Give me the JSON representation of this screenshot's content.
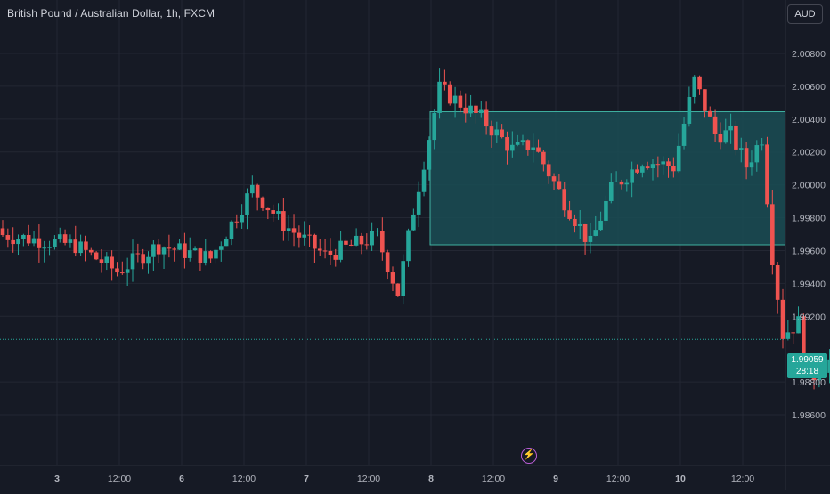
{
  "header": {
    "title": "British Pound / Australian Dollar, 1h, FXCM"
  },
  "currency_button": {
    "label": "AUD"
  },
  "last_price": {
    "price": "1.99059",
    "countdown": "28:18"
  },
  "event_icon": {
    "name": "lightning-icon",
    "glyph": "⚡"
  },
  "colors": {
    "background": "#161a25",
    "up": "#26a69a",
    "down": "#ef5350",
    "zone_fill": "#1a4d55",
    "zone_border": "#3fb0a0"
  },
  "chart_data": {
    "type": "candlestick",
    "title": "British Pound / Australian Dollar, 1h, FXCM",
    "ylim": [
      1.9848,
      2.0104
    ],
    "y_ticks": [
      "2.00800",
      "2.00600",
      "2.00400",
      "2.00200",
      "2.00000",
      "1.99800",
      "1.99600",
      "1.99400",
      "1.99200",
      "1.98800",
      "1.98600"
    ],
    "x_ticks": [
      "3",
      "12:00",
      "6",
      "12:00",
      "7",
      "12:00",
      "8",
      "12:00",
      "9",
      "12:00",
      "10",
      "12:00"
    ],
    "grid": true,
    "last_price": 1.99059,
    "zone": {
      "top": 2.00445,
      "bottom": 1.99635,
      "x_start_label": "8"
    },
    "segments": [
      [
        1.997,
        1.99632,
        15
      ],
      [
        1.99632,
        1.99472,
        8
      ],
      [
        1.99472,
        1.99632,
        8
      ],
      [
        1.99632,
        1.99552,
        10
      ],
      [
        1.99552,
        1.99975,
        8
      ],
      [
        1.99975,
        1.9976,
        6
      ],
      [
        1.9976,
        1.9957,
        8
      ],
      [
        1.9957,
        1.99685,
        10
      ],
      [
        1.99685,
        1.9934,
        4
      ],
      [
        1.9934,
        1.9985,
        3
      ],
      [
        1.9985,
        2.00585,
        5
      ],
      [
        2.00585,
        2.00405,
        8
      ],
      [
        2.00405,
        2.00215,
        6
      ],
      [
        2.00215,
        2.00245,
        4
      ],
      [
        2.00245,
        1.999,
        6
      ],
      [
        1.999,
        1.99635,
        5
      ],
      [
        1.99635,
        1.9997,
        4
      ],
      [
        1.9997,
        2.0015,
        6
      ],
      [
        2.0015,
        2.0011,
        6
      ],
      [
        2.0011,
        2.00635,
        4
      ],
      [
        2.00635,
        2.0031,
        4
      ],
      [
        2.0031,
        2.0031,
        3
      ],
      [
        2.0031,
        2.00115,
        3
      ],
      [
        2.00115,
        2.0029,
        3
      ],
      [
        2.0029,
        1.99565,
        2
      ],
      [
        1.99565,
        1.9909,
        2
      ],
      [
        1.9909,
        1.9916,
        3
      ],
      [
        1.9916,
        1.9881,
        2
      ],
      [
        1.9881,
        1.9893,
        4
      ],
      [
        1.9893,
        1.9885,
        4
      ],
      [
        1.9885,
        1.99,
        2
      ],
      [
        1.99,
        1.9882,
        3
      ],
      [
        1.9882,
        1.99059,
        3
      ]
    ],
    "amplitude": 0.0011,
    "seed": 7
  }
}
